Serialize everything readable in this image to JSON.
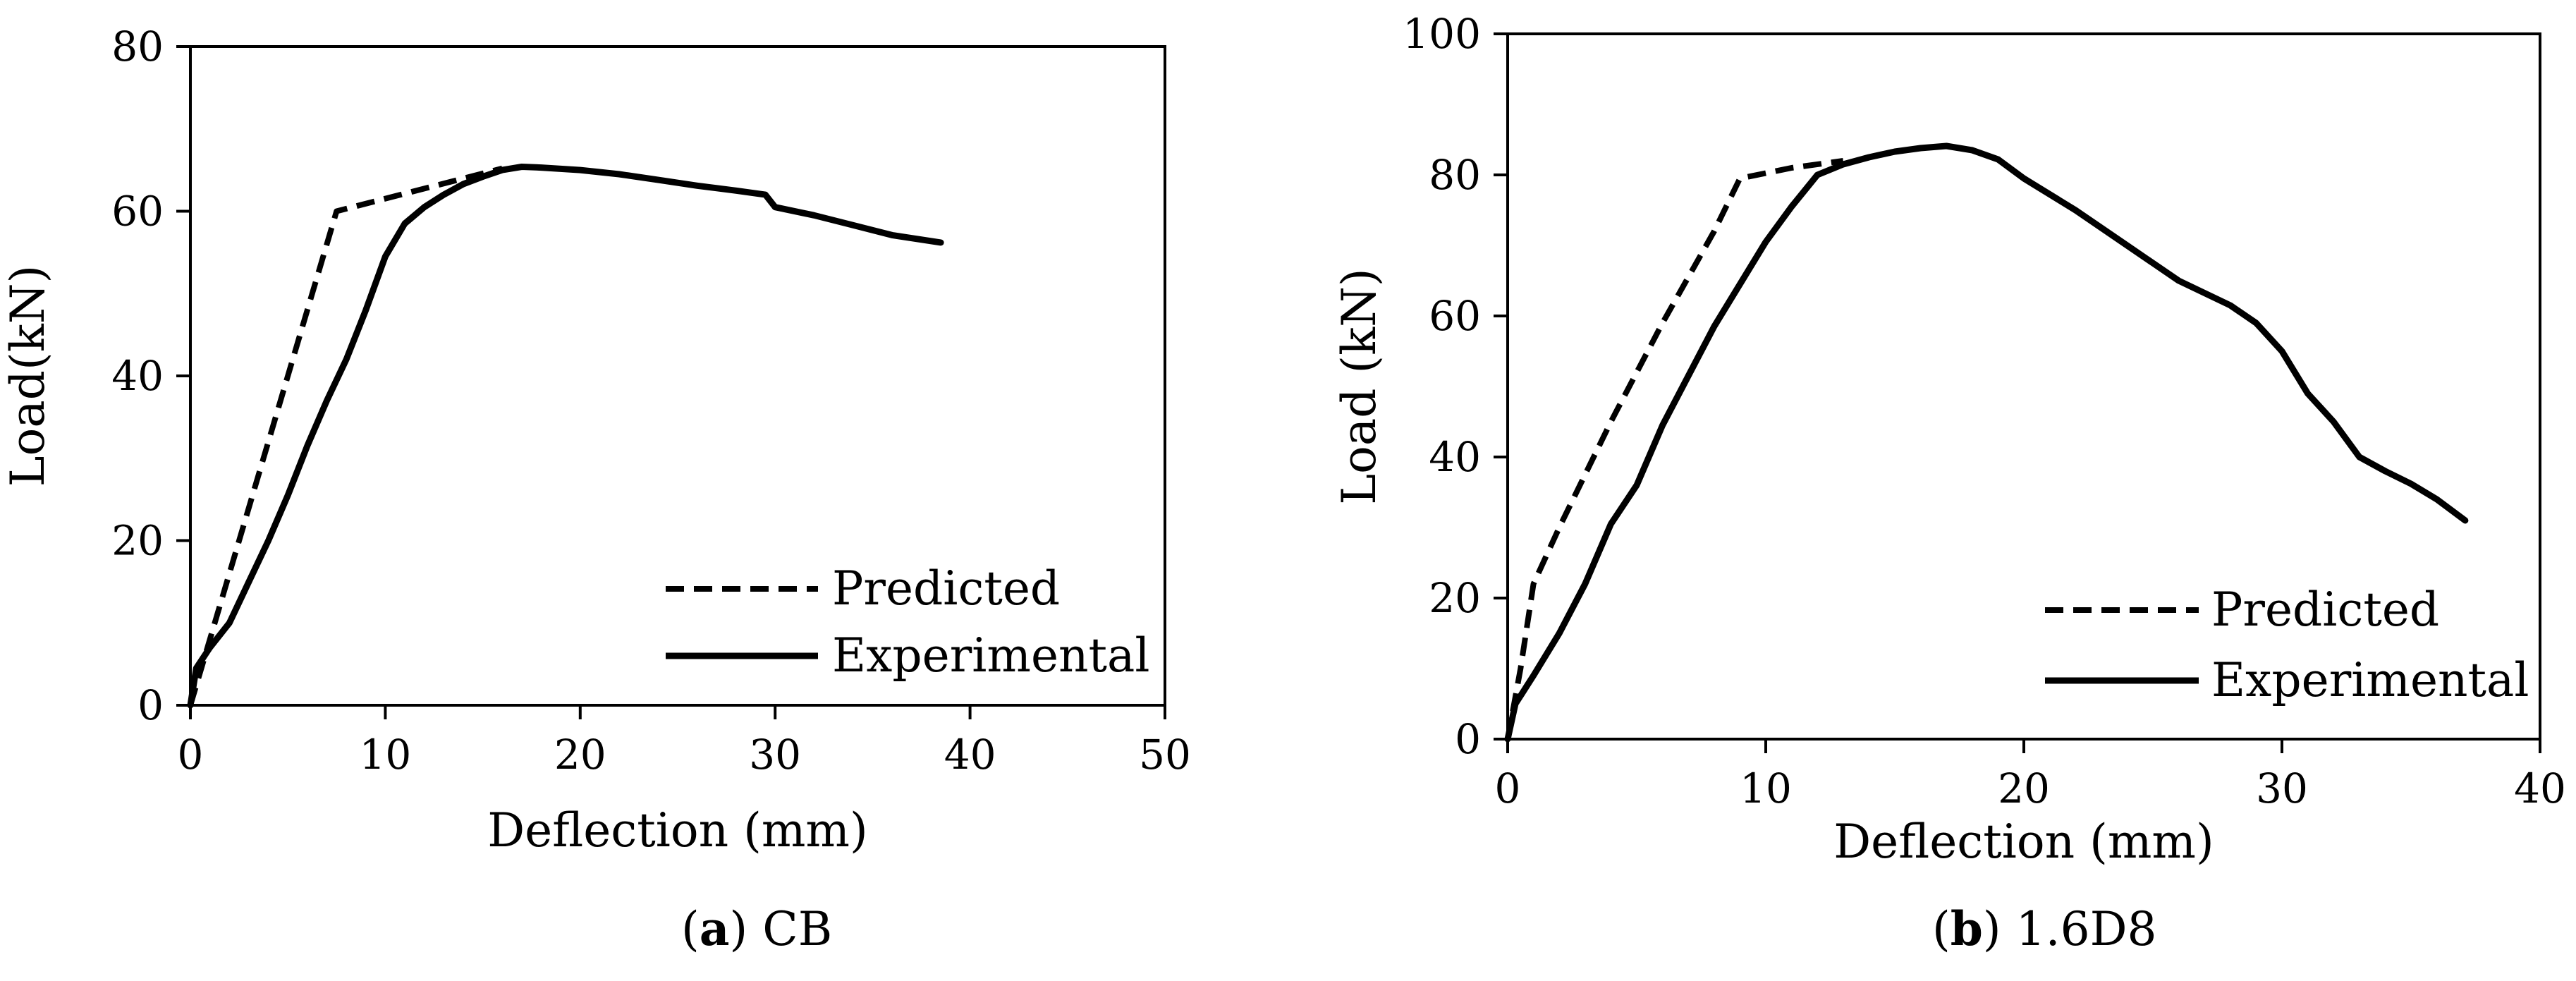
{
  "colors": {
    "line": "#000000",
    "background": "#ffffff"
  },
  "chart_data": [
    {
      "type": "line",
      "panel": "a",
      "caption": {
        "letter": "a",
        "text": " CB"
      },
      "xlabel": "Deflection (mm)",
      "ylabel": "Load(kN)",
      "xlim": [
        0,
        50
      ],
      "ylim": [
        0,
        80
      ],
      "xticks": [
        0,
        10,
        20,
        30,
        40,
        50
      ],
      "yticks": [
        0,
        20,
        40,
        60,
        80
      ],
      "grid": false,
      "legend_position": "bottom-right",
      "series": [
        {
          "name": "Predicted",
          "style": "dashed",
          "points": [
            [
              0,
              0
            ],
            [
              7.5,
              60
            ],
            [
              16,
              65.2
            ]
          ]
        },
        {
          "name": "Experimental",
          "style": "solid",
          "points": [
            [
              0,
              0
            ],
            [
              0.3,
              4.5
            ],
            [
              1,
              7
            ],
            [
              2,
              10
            ],
            [
              3,
              15
            ],
            [
              4,
              20
            ],
            [
              5,
              25.5
            ],
            [
              6,
              31.5
            ],
            [
              7,
              37
            ],
            [
              8,
              42
            ],
            [
              9,
              48
            ],
            [
              10,
              54.5
            ],
            [
              11,
              58.5
            ],
            [
              12,
              60.5
            ],
            [
              13,
              62
            ],
            [
              14,
              63.3
            ],
            [
              15,
              64.2
            ],
            [
              16,
              65
            ],
            [
              17,
              65.4
            ],
            [
              18,
              65.3
            ],
            [
              20,
              65
            ],
            [
              22,
              64.5
            ],
            [
              24,
              63.8
            ],
            [
              26,
              63.1
            ],
            [
              28,
              62.5
            ],
            [
              29.5,
              62
            ],
            [
              30,
              60.5
            ],
            [
              32,
              59.5
            ],
            [
              34,
              58.3
            ],
            [
              36,
              57.1
            ],
            [
              38.5,
              56.2
            ]
          ]
        }
      ]
    },
    {
      "type": "line",
      "panel": "b",
      "caption": {
        "letter": "b",
        "text": " 1.6D8"
      },
      "xlabel": "Deflection (mm)",
      "ylabel": "Load (kN)",
      "xlim": [
        0,
        40
      ],
      "ylim": [
        0,
        100
      ],
      "xticks": [
        0,
        10,
        20,
        30,
        40
      ],
      "yticks": [
        0,
        20,
        40,
        60,
        80,
        100
      ],
      "grid": false,
      "legend_position": "bottom-right",
      "series": [
        {
          "name": "Predicted",
          "style": "dashed",
          "points": [
            [
              0,
              0
            ],
            [
              0.5,
              10
            ],
            [
              1,
              22
            ],
            [
              2,
              30
            ],
            [
              4,
              45
            ],
            [
              6,
              59
            ],
            [
              8,
              72
            ],
            [
              9,
              79.5
            ],
            [
              11,
              81
            ],
            [
              13,
              82
            ]
          ]
        },
        {
          "name": "Experimental",
          "style": "solid",
          "points": [
            [
              0,
              0
            ],
            [
              0.3,
              5
            ],
            [
              1,
              9
            ],
            [
              2,
              15
            ],
            [
              3,
              22
            ],
            [
              4,
              30.5
            ],
            [
              5,
              36
            ],
            [
              6,
              44.5
            ],
            [
              7,
              51.5
            ],
            [
              8,
              58.5
            ],
            [
              9,
              64.5
            ],
            [
              10,
              70.5
            ],
            [
              11,
              75.5
            ],
            [
              12,
              80
            ],
            [
              13,
              81.5
            ],
            [
              14,
              82.5
            ],
            [
              15,
              83.3
            ],
            [
              16,
              83.8
            ],
            [
              17,
              84.1
            ],
            [
              18,
              83.5
            ],
            [
              19,
              82.2
            ],
            [
              20,
              79.5
            ],
            [
              22,
              75
            ],
            [
              24,
              70
            ],
            [
              26,
              65
            ],
            [
              28,
              61.5
            ],
            [
              29,
              59
            ],
            [
              30,
              55
            ],
            [
              31,
              49
            ],
            [
              32,
              45
            ],
            [
              33,
              40
            ],
            [
              34,
              38
            ],
            [
              35,
              36.2
            ],
            [
              36,
              34
            ],
            [
              37.1,
              31
            ]
          ]
        }
      ]
    }
  ]
}
